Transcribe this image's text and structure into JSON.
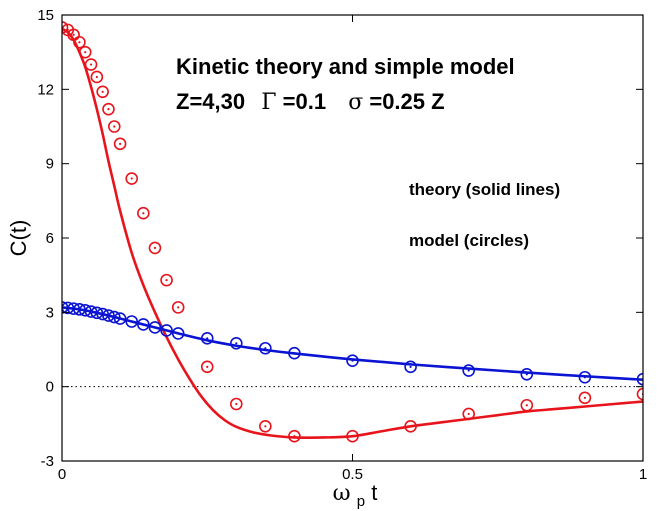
{
  "chart_data": {
    "type": "scatter",
    "title_line1": "Kinetic theory and simple model",
    "title_line2": {
      "z_part": "Z=4,30",
      "gamma_symbol": "Γ",
      "gamma_value": "=0.1",
      "sigma_symbol": "σ",
      "sigma_value": "=0.25 Z"
    },
    "annotations": [
      "theory (solid lines)",
      "model (circles)"
    ],
    "xlabel": {
      "omega": "ω",
      "subscript": "p",
      "tail": " t"
    },
    "ylabel": "C(t)",
    "xlim": [
      0,
      1
    ],
    "ylim": [
      -3,
      15
    ],
    "x_ticks": [
      0,
      0.5,
      1
    ],
    "x_tick_labels": [
      "0",
      "0.5",
      "1"
    ],
    "y_ticks": [
      -3,
      0,
      3,
      6,
      9,
      12,
      15
    ],
    "y_tick_labels": [
      "-3",
      "0",
      "3",
      "6",
      "9",
      "12",
      "15"
    ],
    "zero_line": "dotted",
    "colors": {
      "red": "#e8141c",
      "blue": "#0a14d2"
    },
    "series": [
      {
        "color": "red",
        "line": {
          "x": [
            0,
            0.01,
            0.02,
            0.03,
            0.04,
            0.05,
            0.06,
            0.07,
            0.08,
            0.09,
            0.1,
            0.12,
            0.14,
            0.16,
            0.18,
            0.2,
            0.22,
            0.24,
            0.26,
            0.28,
            0.3,
            0.33,
            0.36,
            0.4,
            0.45,
            0.5,
            0.55,
            0.6,
            0.65,
            0.7,
            0.75,
            0.8,
            0.85,
            0.9,
            0.95,
            1.0
          ],
          "y": [
            14.45,
            14.3,
            14.0,
            13.5,
            12.9,
            12.1,
            11.2,
            10.2,
            9.1,
            8.1,
            7.1,
            5.4,
            4.1,
            3.0,
            2.0,
            1.1,
            0.3,
            -0.4,
            -0.95,
            -1.35,
            -1.62,
            -1.85,
            -1.97,
            -2.05,
            -2.05,
            -2.0,
            -1.8,
            -1.6,
            -1.45,
            -1.3,
            -1.15,
            -1.0,
            -0.9,
            -0.8,
            -0.7,
            -0.6
          ]
        },
        "markers": {
          "x": [
            0,
            0.01,
            0.02,
            0.03,
            0.04,
            0.05,
            0.06,
            0.07,
            0.08,
            0.09,
            0.1,
            0.12,
            0.14,
            0.16,
            0.18,
            0.2,
            0.25,
            0.3,
            0.35,
            0.4,
            0.5,
            0.6,
            0.7,
            0.8,
            0.9,
            1.0
          ],
          "y": [
            14.5,
            14.4,
            14.2,
            13.9,
            13.5,
            13.0,
            12.5,
            11.9,
            11.2,
            10.5,
            9.8,
            8.4,
            7.0,
            5.6,
            4.3,
            3.2,
            0.8,
            -0.7,
            -1.6,
            -2.0,
            -2.0,
            -1.6,
            -1.1,
            -0.75,
            -0.45,
            -0.3
          ]
        }
      },
      {
        "color": "blue",
        "line": {
          "x": [
            0,
            0.02,
            0.04,
            0.06,
            0.08,
            0.1,
            0.15,
            0.2,
            0.25,
            0.3,
            0.35,
            0.4,
            0.5,
            0.6,
            0.7,
            0.8,
            0.9,
            1.0
          ],
          "y": [
            3.2,
            3.15,
            3.08,
            2.98,
            2.87,
            2.75,
            2.45,
            2.15,
            1.87,
            1.65,
            1.48,
            1.34,
            1.1,
            0.9,
            0.73,
            0.57,
            0.42,
            0.28
          ]
        },
        "markers": {
          "x": [
            0,
            0.01,
            0.02,
            0.03,
            0.04,
            0.05,
            0.06,
            0.07,
            0.08,
            0.09,
            0.1,
            0.12,
            0.14,
            0.16,
            0.18,
            0.2,
            0.25,
            0.3,
            0.35,
            0.4,
            0.5,
            0.6,
            0.7,
            0.8,
            0.9,
            1.0
          ],
          "y": [
            3.2,
            3.18,
            3.15,
            3.12,
            3.08,
            3.03,
            2.98,
            2.93,
            2.87,
            2.81,
            2.75,
            2.63,
            2.51,
            2.39,
            2.27,
            2.15,
            1.95,
            1.75,
            1.55,
            1.35,
            1.05,
            0.8,
            0.65,
            0.5,
            0.38,
            0.3
          ]
        }
      }
    ]
  }
}
